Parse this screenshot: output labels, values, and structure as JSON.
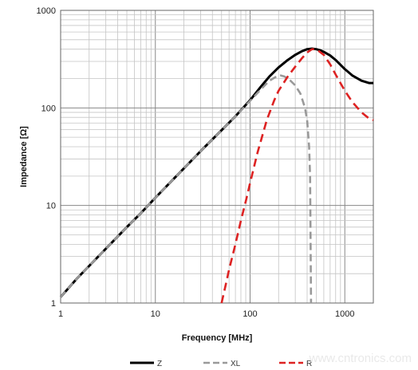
{
  "chart_data": {
    "type": "line",
    "title": "",
    "xlabel": "Frequency [MHz]",
    "ylabel": "Impedance [Ω]",
    "xscale": "log",
    "yscale": "log",
    "xlim": [
      1,
      2000
    ],
    "ylim": [
      1,
      1000
    ],
    "grid": true,
    "x_ticks": [
      "1",
      "10",
      "100",
      "1000"
    ],
    "y_ticks": [
      "1",
      "10",
      "100",
      "1000"
    ],
    "legend_position": "bottom",
    "series": [
      {
        "name": "Z",
        "color": "#000000",
        "style": "solid",
        "x": [
          1,
          1.5,
          2,
          3,
          5,
          7,
          10,
          15,
          20,
          30,
          50,
          70,
          100,
          130,
          160,
          200,
          250,
          300,
          350,
          400,
          450,
          500,
          550,
          600,
          700,
          800,
          1000,
          1200,
          1500,
          1800,
          2000
        ],
        "y": [
          1.15,
          1.8,
          2.4,
          3.6,
          6,
          8.3,
          12,
          18,
          24,
          36,
          59,
          82,
          120,
          165,
          210,
          260,
          310,
          350,
          380,
          400,
          405,
          400,
          390,
          375,
          345,
          310,
          250,
          215,
          190,
          180,
          180
        ]
      },
      {
        "name": "XL",
        "color": "#999999",
        "style": "dashed",
        "x": [
          1,
          1.5,
          2,
          3,
          5,
          7,
          10,
          15,
          20,
          30,
          50,
          70,
          100,
          130,
          160,
          190,
          210,
          230,
          260,
          300,
          340,
          380,
          400,
          420,
          430,
          440
        ],
        "y": [
          1.15,
          1.8,
          2.4,
          3.6,
          6,
          8.3,
          12,
          18,
          24,
          36,
          59,
          82,
          118,
          155,
          190,
          210,
          215,
          210,
          195,
          170,
          140,
          100,
          75,
          40,
          20,
          1
        ]
      },
      {
        "name": "R",
        "color": "#dd2222",
        "style": "dashed",
        "x": [
          50,
          55,
          60,
          70,
          80,
          90,
          100,
          120,
          150,
          180,
          200,
          250,
          300,
          350,
          400,
          450,
          500,
          600,
          700,
          800,
          1000,
          1200,
          1500,
          1800,
          2000
        ],
        "y": [
          1,
          1.5,
          2.2,
          4,
          7,
          11,
          17,
          35,
          75,
          120,
          150,
          210,
          265,
          320,
          370,
          400,
          400,
          350,
          280,
          220,
          150,
          115,
          90,
          78,
          75
        ]
      }
    ]
  },
  "watermark": "www.cntronics.com"
}
